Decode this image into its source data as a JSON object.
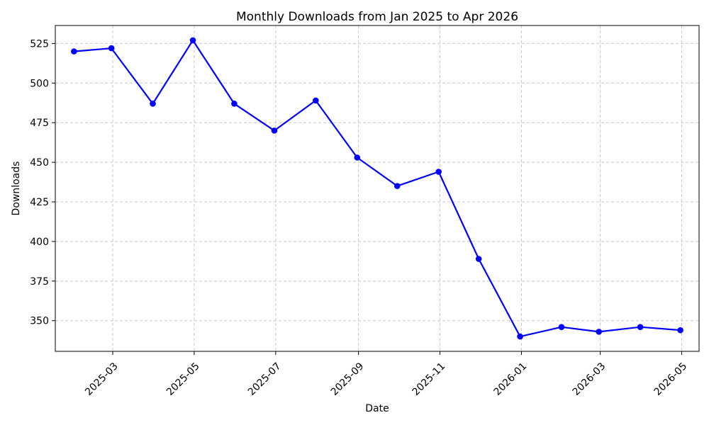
{
  "chart_data": {
    "type": "line",
    "title": "Monthly Downloads from Jan 2025 to Apr 2026",
    "xlabel": "Date",
    "ylabel": "Downloads",
    "x": [
      "2025-01-31",
      "2025-02-28",
      "2025-03-31",
      "2025-04-30",
      "2025-05-31",
      "2025-06-30",
      "2025-07-31",
      "2025-08-31",
      "2025-09-30",
      "2025-10-31",
      "2025-11-30",
      "2025-12-31",
      "2026-01-31",
      "2026-02-28",
      "2026-03-31",
      "2026-04-30"
    ],
    "series": [
      {
        "values": [
          520,
          522,
          487,
          527,
          487,
          470,
          489,
          453,
          435,
          444,
          389,
          340,
          346,
          343,
          346,
          344
        ],
        "color": "#0000ff",
        "marker": "circle"
      }
    ],
    "xlim": [
      "2025-01-17",
      "2026-05-14"
    ],
    "ylim": [
      330.65,
      536.35
    ],
    "xticks": [
      "2025-03",
      "2025-05",
      "2025-07",
      "2025-09",
      "2025-11",
      "2026-01",
      "2026-03",
      "2026-05"
    ],
    "yticks": [
      350,
      375,
      400,
      425,
      450,
      475,
      500,
      525
    ],
    "grid": true,
    "legend": "none"
  }
}
